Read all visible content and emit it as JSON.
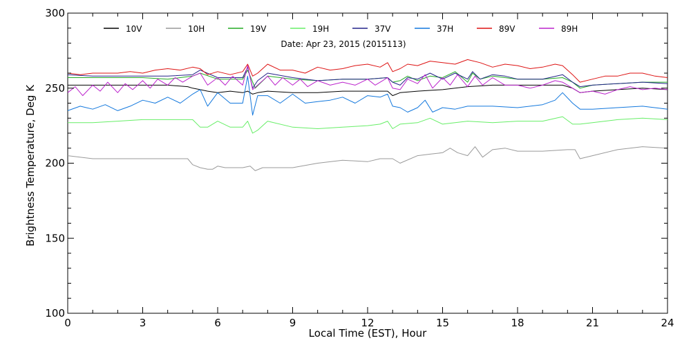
{
  "chart_data": {
    "type": "line",
    "title": "",
    "subtitle": "Date: Apr 23, 2015 (2015113)",
    "xlabel": "Local Time (EST), Hour",
    "ylabel": "Brightness Temperature, Deg K",
    "xlim": [
      0,
      24
    ],
    "ylim": [
      100,
      300
    ],
    "x_ticks": [
      0,
      3,
      6,
      9,
      12,
      15,
      18,
      21,
      24
    ],
    "y_ticks": [
      100,
      150,
      200,
      250,
      300
    ],
    "grid": false,
    "legend_position": "top",
    "series": [
      {
        "name": "10V",
        "color": "#000000",
        "x": [
          0,
          1,
          2,
          3,
          4,
          4.8,
          5,
          5.3,
          5.6,
          6,
          6.5,
          7,
          7.2,
          7.4,
          7.6,
          8,
          9,
          10,
          11,
          12,
          12.8,
          13,
          13.3,
          14,
          15,
          16,
          17,
          18,
          19,
          19.8,
          20.2,
          20.5,
          21,
          22,
          23,
          24
        ],
        "y": [
          252,
          252,
          252,
          252,
          252,
          251,
          250,
          249,
          248,
          247,
          248,
          247,
          248,
          246,
          247,
          248,
          247,
          247,
          248,
          248,
          248,
          245,
          247,
          248,
          249,
          251,
          252,
          252,
          252,
          252,
          250,
          247,
          248,
          249,
          250,
          249
        ]
      },
      {
        "name": "10H",
        "color": "#999999",
        "x": [
          0,
          1,
          2,
          3,
          4,
          4.8,
          5,
          5.3,
          5.6,
          5.8,
          6,
          6.3,
          6.6,
          7,
          7.3,
          7.5,
          7.8,
          8.2,
          9,
          10,
          11,
          12,
          12.5,
          13,
          13.3,
          14,
          14.5,
          15,
          15.3,
          15.6,
          16,
          16.3,
          16.6,
          17,
          17.5,
          18,
          19,
          20,
          20.3,
          20.5,
          21,
          22,
          23,
          24
        ],
        "y": [
          205,
          203,
          203,
          203,
          203,
          203,
          199,
          197,
          196,
          196,
          198,
          197,
          197,
          197,
          198,
          195,
          197,
          197,
          197,
          200,
          202,
          201,
          203,
          203,
          200,
          205,
          206,
          207,
          210,
          207,
          205,
          211,
          204,
          209,
          210,
          208,
          208,
          209,
          209,
          203,
          205,
          209,
          211,
          210
        ]
      },
      {
        "name": "19V",
        "color": "#22aa22",
        "x": [
          0,
          1,
          2,
          3,
          4,
          5,
          5.3,
          6,
          7,
          7.2,
          7.5,
          8,
          9,
          10,
          11,
          12,
          12.8,
          13,
          13.3,
          13.6,
          14,
          14.5,
          15,
          15.5,
          16,
          16.2,
          16.5,
          17,
          17.5,
          18,
          19,
          19.8,
          20.2,
          20.5,
          21,
          22,
          23,
          24
        ],
        "y": [
          257,
          257,
          257,
          257,
          256,
          258,
          260,
          256,
          256,
          262,
          250,
          258,
          256,
          255,
          256,
          256,
          257,
          254,
          255,
          258,
          255,
          258,
          257,
          261,
          254,
          260,
          256,
          258,
          257,
          256,
          256,
          257,
          254,
          250,
          252,
          253,
          254,
          254
        ]
      },
      {
        "name": "19H",
        "color": "#66ee66",
        "x": [
          0,
          1,
          2,
          3,
          4,
          5,
          5.3,
          5.6,
          6,
          6.5,
          7,
          7.2,
          7.4,
          7.6,
          8,
          9,
          10,
          11,
          12,
          12.5,
          12.8,
          13,
          13.3,
          14,
          14.5,
          15,
          16,
          17,
          18,
          19,
          19.8,
          20.2,
          20.5,
          21,
          22,
          23,
          24
        ],
        "y": [
          227,
          227,
          228,
          229,
          229,
          229,
          224,
          224,
          228,
          224,
          224,
          228,
          220,
          222,
          228,
          224,
          223,
          224,
          225,
          226,
          228,
          223,
          226,
          227,
          230,
          226,
          228,
          227,
          228,
          228,
          231,
          226,
          226,
          227,
          229,
          230,
          229
        ]
      },
      {
        "name": "37V",
        "color": "#222288",
        "x": [
          0,
          1,
          2,
          3,
          4,
          5,
          5.3,
          6,
          7,
          7.2,
          7.4,
          7.6,
          8,
          9,
          10,
          11,
          12,
          12.8,
          13,
          13.3,
          13.6,
          14,
          14.5,
          15,
          15.5,
          16,
          16.2,
          16.5,
          17,
          17.5,
          18,
          19,
          19.8,
          20.2,
          20.5,
          21,
          22,
          23,
          24
        ],
        "y": [
          259,
          258,
          258,
          258,
          258,
          259,
          262,
          257,
          257,
          264,
          250,
          255,
          260,
          257,
          255,
          256,
          256,
          257,
          254,
          252,
          257,
          256,
          260,
          256,
          260,
          256,
          261,
          256,
          259,
          258,
          256,
          256,
          259,
          254,
          251,
          252,
          253,
          254,
          253
        ]
      },
      {
        "name": "37H",
        "color": "#1177dd",
        "x": [
          0,
          0.5,
          1,
          1.5,
          2,
          2.5,
          3,
          3.5,
          4,
          4.5,
          5,
          5.3,
          5.6,
          6,
          6.5,
          7,
          7.2,
          7.4,
          7.6,
          8,
          8.5,
          9,
          9.5,
          10,
          10.5,
          11,
          11.5,
          12,
          12.5,
          12.8,
          13,
          13.3,
          13.6,
          14,
          14.3,
          14.6,
          15,
          15.5,
          16,
          17,
          18,
          19,
          19.5,
          19.8,
          20.2,
          20.5,
          21,
          22,
          23,
          24
        ],
        "y": [
          235,
          238,
          236,
          239,
          235,
          238,
          242,
          240,
          244,
          240,
          246,
          249,
          238,
          247,
          240,
          240,
          258,
          232,
          245,
          245,
          240,
          246,
          240,
          241,
          242,
          244,
          240,
          245,
          244,
          246,
          238,
          237,
          234,
          237,
          242,
          234,
          237,
          236,
          238,
          238,
          237,
          239,
          242,
          247,
          240,
          236,
          236,
          237,
          238,
          236
        ]
      },
      {
        "name": "89V",
        "color": "#dd1111",
        "x": [
          0,
          0.5,
          1,
          1.5,
          2,
          2.5,
          3,
          3.5,
          4,
          4.5,
          5,
          5.3,
          5.6,
          6,
          6.5,
          7,
          7.2,
          7.4,
          7.6,
          8,
          8.5,
          9,
          9.5,
          10,
          10.5,
          11,
          11.5,
          12,
          12.5,
          12.8,
          13,
          13.3,
          13.6,
          14,
          14.5,
          15,
          15.5,
          16,
          16.5,
          17,
          17.5,
          18,
          18.5,
          19,
          19.5,
          19.8,
          20.2,
          20.5,
          21,
          21.5,
          22,
          22.5,
          23,
          23.5,
          24
        ],
        "y": [
          260,
          259,
          260,
          260,
          260,
          261,
          260,
          262,
          263,
          262,
          264,
          263,
          259,
          261,
          259,
          261,
          266,
          258,
          260,
          266,
          262,
          262,
          260,
          264,
          262,
          263,
          265,
          266,
          264,
          267,
          261,
          263,
          266,
          265,
          268,
          267,
          266,
          269,
          267,
          264,
          266,
          265,
          263,
          264,
          266,
          265,
          259,
          254,
          256,
          258,
          258,
          260,
          260,
          258,
          257
        ]
      },
      {
        "name": "89H",
        "color": "#bb22cc",
        "x": [
          0,
          0.3,
          0.6,
          1,
          1.3,
          1.6,
          2,
          2.3,
          2.6,
          3,
          3.3,
          3.6,
          4,
          4.3,
          4.6,
          5,
          5.3,
          5.6,
          6,
          6.3,
          6.6,
          7,
          7.2,
          7.4,
          7.6,
          8,
          8.3,
          8.6,
          9,
          9.3,
          9.6,
          10,
          10.5,
          11,
          11.5,
          12,
          12.3,
          12.6,
          12.8,
          13,
          13.3,
          13.6,
          14,
          14.3,
          14.6,
          15,
          15.3,
          15.6,
          16,
          16.3,
          16.6,
          17,
          17.5,
          18,
          18.5,
          19,
          19.5,
          19.8,
          20.2,
          20.5,
          21,
          21.5,
          22,
          22.5,
          23,
          23.5,
          24
        ],
        "y": [
          247,
          251,
          245,
          252,
          248,
          254,
          247,
          253,
          249,
          255,
          250,
          256,
          252,
          257,
          254,
          258,
          260,
          252,
          257,
          252,
          258,
          252,
          265,
          249,
          252,
          258,
          252,
          257,
          252,
          256,
          251,
          255,
          252,
          254,
          252,
          256,
          252,
          255,
          257,
          250,
          249,
          256,
          253,
          259,
          250,
          257,
          252,
          259,
          251,
          258,
          252,
          257,
          252,
          252,
          250,
          252,
          255,
          254,
          250,
          247,
          248,
          246,
          249,
          251,
          249,
          250,
          249
        ]
      }
    ]
  }
}
